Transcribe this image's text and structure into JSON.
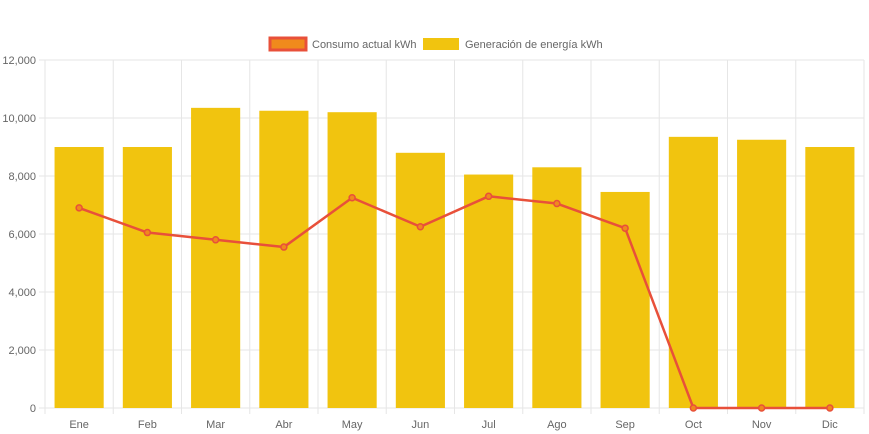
{
  "chart_data": {
    "type": "bar",
    "categories": [
      "Ene",
      "Feb",
      "Mar",
      "Abr",
      "May",
      "Jun",
      "Jul",
      "Ago",
      "Sep",
      "Oct",
      "Nov",
      "Dic"
    ],
    "series": [
      {
        "name": "Consumo actual kWh",
        "type": "line",
        "color": "#e8503a",
        "fill_color": "#f08a1c",
        "values": [
          6900,
          6050,
          5800,
          5550,
          7250,
          6250,
          7300,
          7050,
          6200,
          0,
          0,
          0
        ]
      },
      {
        "name": "Generación de energía kWh",
        "type": "bar",
        "color": "#f1c40f",
        "values": [
          9000,
          9000,
          10350,
          10250,
          10200,
          8800,
          8050,
          8300,
          7450,
          9350,
          9250,
          9000
        ]
      }
    ],
    "ylim": [
      0,
      12000
    ],
    "yticks": [
      "0",
      "2,000",
      "4,000",
      "6,000",
      "8,000",
      "10,000",
      "12,000"
    ],
    "grid": true,
    "legend_position": "top"
  }
}
